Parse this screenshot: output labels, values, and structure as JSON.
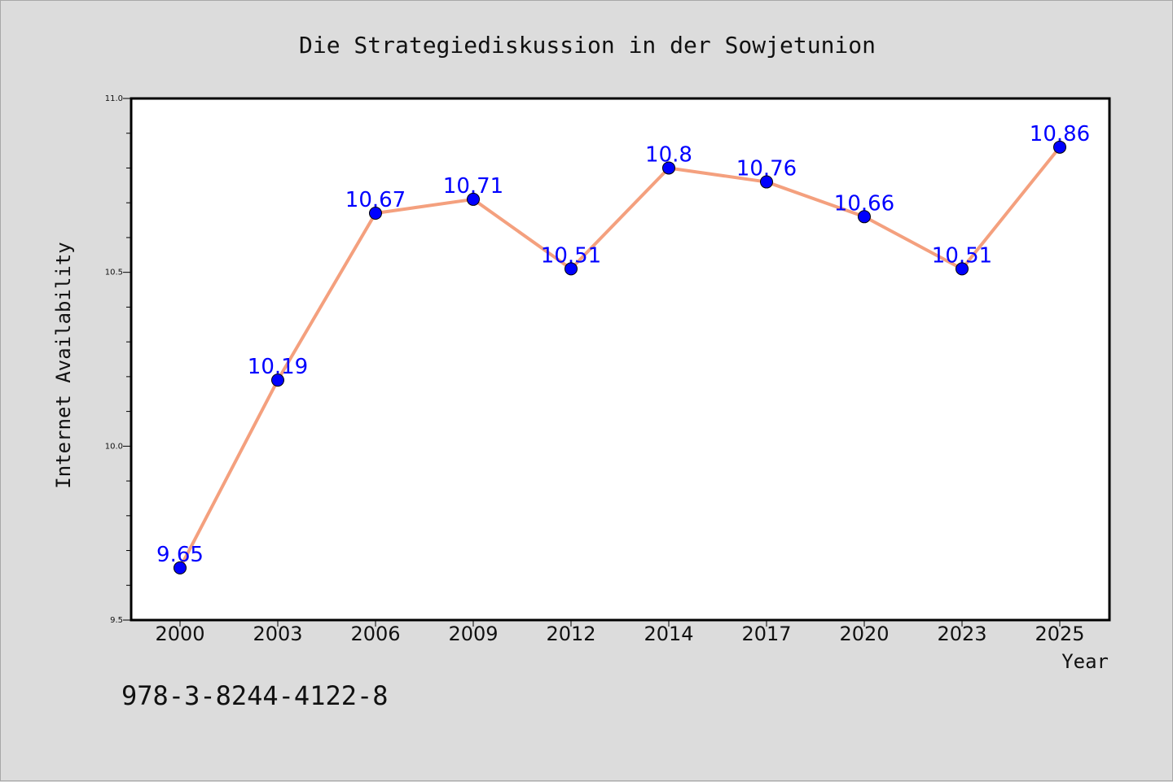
{
  "chart_data": {
    "type": "line",
    "title": "Die Strategiediskussion in der Sowjetunion",
    "xlabel": "Year",
    "ylabel": "Internet Availability",
    "categories": [
      "2000",
      "2003",
      "2006",
      "2009",
      "2012",
      "2014",
      "2017",
      "2020",
      "2023",
      "2025"
    ],
    "series": [
      {
        "values": [
          9.65,
          10.19,
          10.67,
          10.71,
          10.51,
          10.8,
          10.76,
          10.66,
          10.51,
          10.86
        ],
        "line_color": "#f4a07e",
        "marker_color": "#0000ff"
      }
    ],
    "data_labels": [
      "9.65",
      "10.19",
      "10.67",
      "10.71",
      "10.51",
      "10.8",
      "10.76",
      "10.66",
      "10.51",
      "10.86"
    ],
    "ylim": [
      9.5,
      11.0
    ],
    "yticks": [
      "9.5",
      "10.0",
      "10.5",
      "11.0"
    ],
    "grid": false,
    "legend": "none"
  },
  "annotation": {
    "isbn": "978-3-8244-4122-8"
  },
  "colors": {
    "background": "#dcdcdc",
    "plot_background": "#ffffff",
    "line": "#f4a07e",
    "marker": "#0000ff",
    "label": "#0000ff"
  }
}
